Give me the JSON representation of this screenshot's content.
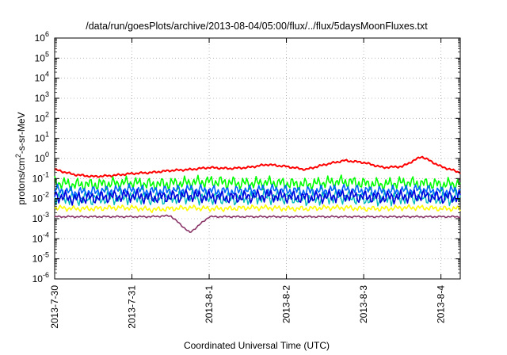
{
  "chart_data": {
    "type": "line",
    "title": "/data/run/goesPlots/archive/2013-08-04/05:00/flux/../flux/5daysMoonFluxes.txt",
    "xlabel": "Coordinated Universal Time (UTC)",
    "ylabel": "protons/cm²-s-sr-MeV",
    "ylabel_parts": {
      "pre": "protons/cm",
      "sup": "2",
      "post": "-s-sr-MeV"
    },
    "yscale": "log",
    "ylim_exponents": [
      -6,
      6
    ],
    "y_tick_exponents": [
      -6,
      -5,
      -4,
      -3,
      -2,
      -1,
      0,
      1,
      2,
      3,
      4,
      5,
      6
    ],
    "y_tick_base": "10",
    "xlim_days": [
      0,
      5.25
    ],
    "x_ticks": [
      {
        "day": 0,
        "label": "2013-7-30"
      },
      {
        "day": 1,
        "label": "2013-7-31"
      },
      {
        "day": 2,
        "label": "2013-8-1"
      },
      {
        "day": 3,
        "label": "2013-8-2"
      },
      {
        "day": 4,
        "label": "2013-8-3"
      },
      {
        "day": 5,
        "label": "2013-8-4"
      }
    ],
    "grid": true,
    "legend": "none",
    "x_sample_days": [
      0,
      0.25,
      0.5,
      0.75,
      1.0,
      1.25,
      1.5,
      1.75,
      2.0,
      2.25,
      2.5,
      2.75,
      3.0,
      3.25,
      3.5,
      3.75,
      4.0,
      4.25,
      4.5,
      4.75,
      5.0,
      5.25
    ],
    "series": [
      {
        "color": "#ff0000",
        "base_log": [
          -0.55,
          -0.8,
          -0.9,
          -0.85,
          -0.75,
          -0.7,
          -0.6,
          -0.55,
          -0.45,
          -0.5,
          -0.45,
          -0.3,
          -0.4,
          -0.55,
          -0.3,
          -0.1,
          -0.2,
          -0.45,
          -0.4,
          0.1,
          -0.4,
          -0.7
        ],
        "jitter": 0.06,
        "width": 2
      },
      {
        "color": "#00ff00",
        "base_log": [
          -1.2,
          -1.3,
          -1.3,
          -1.25,
          -1.2,
          -1.3,
          -1.25,
          -1.2,
          -1.15,
          -1.2,
          -1.25,
          -1.2,
          -1.25,
          -1.3,
          -1.2,
          -1.15,
          -1.25,
          -1.3,
          -1.2,
          -1.25,
          -1.3,
          -1.25
        ],
        "jitter": 0.35,
        "width": 1.6
      },
      {
        "color": "#00bbbb",
        "base_log": [
          -1.9,
          -2.0,
          -2.0,
          -1.95,
          -1.9,
          -2.0,
          -1.95,
          -1.9,
          -1.95,
          -2.0,
          -1.95,
          -1.9,
          -1.95,
          -2.0,
          -1.95,
          -1.9,
          -2.0,
          -2.0,
          -1.95,
          -1.9,
          -2.0,
          -1.95
        ],
        "jitter": 0.4,
        "width": 1.4
      },
      {
        "color": "#0066ff",
        "base_log": [
          -1.55,
          -1.7,
          -1.65,
          -1.6,
          -1.55,
          -1.65,
          -1.6,
          -1.55,
          -1.6,
          -1.65,
          -1.6,
          -1.55,
          -1.6,
          -1.65,
          -1.6,
          -1.55,
          -1.6,
          -1.65,
          -1.6,
          -1.55,
          -1.65,
          -1.6
        ],
        "jitter": 0.3,
        "width": 1.6
      },
      {
        "color": "#0000dd",
        "base_log": [
          -1.85,
          -2.0,
          -1.95,
          -1.9,
          -1.85,
          -1.95,
          -1.9,
          -1.85,
          -1.9,
          -1.95,
          -1.9,
          -1.85,
          -1.9,
          -1.95,
          -1.9,
          -1.85,
          -1.9,
          -1.95,
          -1.9,
          -1.85,
          -1.95,
          -1.9
        ],
        "jitter": 0.35,
        "width": 1.6
      },
      {
        "color": "#ffff00",
        "base_log": [
          -2.45,
          -2.5,
          -2.5,
          -2.45,
          -2.45,
          -2.55,
          -2.5,
          -2.45,
          -2.5,
          -2.5,
          -2.45,
          -2.45,
          -2.5,
          -2.5,
          -2.45,
          -2.45,
          -2.5,
          -2.5,
          -2.45,
          -2.45,
          -2.5,
          -2.5
        ],
        "jitter": 0.15,
        "width": 1.6
      },
      {
        "color": "#883366",
        "base_log": [
          -2.9,
          -2.9,
          -2.9,
          -2.9,
          -2.9,
          -2.9,
          -2.85,
          -3.7,
          -2.9,
          -2.9,
          -2.9,
          -2.9,
          -2.9,
          -2.9,
          -2.9,
          -2.9,
          -2.9,
          -2.9,
          -2.9,
          -2.9,
          -2.9,
          -2.9
        ],
        "jitter": 0.05,
        "width": 1.6
      }
    ]
  }
}
